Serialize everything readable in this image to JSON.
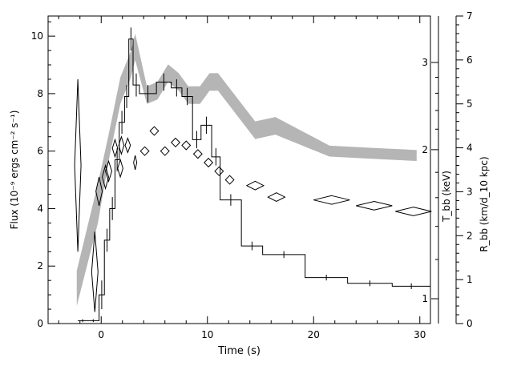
{
  "chart_data": {
    "type": "line",
    "xlabel": "Time (s)",
    "xlim": [
      -5,
      31
    ],
    "x_ticks": [
      "0",
      "10",
      "20",
      "30"
    ],
    "axes": {
      "flux": {
        "label": "Flux (10⁻⁹ ergs cm⁻² s⁻¹)",
        "ylim": [
          0,
          10.7
        ],
        "ticks": [
          "0",
          "2",
          "4",
          "6",
          "8",
          "10"
        ]
      },
      "temperature": {
        "label": "T_bb (keV)",
        "scale": "log",
        "ticks": [
          "1",
          "2",
          "3"
        ]
      },
      "radius": {
        "label": "R_bb (km/d_10 kpc)",
        "ylim": [
          0,
          7
        ],
        "ticks": [
          "0",
          "1",
          "2",
          "3",
          "4",
          "5",
          "6",
          "7"
        ]
      }
    },
    "series": [
      {
        "style": "histogram",
        "axis": "flux",
        "points": [
          {
            "x0": -2.2,
            "x1": -1.3,
            "y": 0.1,
            "err": 0.05
          },
          {
            "x0": -1.3,
            "x1": -0.2,
            "y": 0.1,
            "err": 0.05
          },
          {
            "x0": -0.2,
            "x1": 0.3,
            "y": 1.0,
            "err": 0.5
          },
          {
            "x0": 0.3,
            "x1": 0.8,
            "y": 2.9,
            "err": 0.4
          },
          {
            "x0": 0.8,
            "x1": 1.3,
            "y": 4.0,
            "err": 0.4
          },
          {
            "x0": 1.3,
            "x1": 1.7,
            "y": 5.7,
            "err": 0.4
          },
          {
            "x0": 1.7,
            "x1": 2.2,
            "y": 7.0,
            "err": 0.4
          },
          {
            "x0": 2.2,
            "x1": 2.6,
            "y": 7.9,
            "err": 0.4
          },
          {
            "x0": 2.6,
            "x1": 3.0,
            "y": 9.9,
            "err": 0.4
          },
          {
            "x0": 3.0,
            "x1": 3.6,
            "y": 8.3,
            "err": 0.4
          },
          {
            "x0": 3.6,
            "x1": 5.2,
            "y": 8.0,
            "err": 0.3
          },
          {
            "x0": 5.2,
            "x1": 6.6,
            "y": 8.4,
            "err": 0.3
          },
          {
            "x0": 6.6,
            "x1": 7.6,
            "y": 8.2,
            "err": 0.3
          },
          {
            "x0": 7.6,
            "x1": 8.6,
            "y": 7.9,
            "err": 0.3
          },
          {
            "x0": 8.6,
            "x1": 9.4,
            "y": 6.4,
            "err": 0.3
          },
          {
            "x0": 9.4,
            "x1": 10.4,
            "y": 6.9,
            "err": 0.3
          },
          {
            "x0": 10.4,
            "x1": 11.2,
            "y": 5.8,
            "err": 0.3
          },
          {
            "x0": 11.2,
            "x1": 13.2,
            "y": 4.3,
            "err": 0.2
          },
          {
            "x0": 13.2,
            "x1": 15.2,
            "y": 2.7,
            "err": 0.15
          },
          {
            "x0": 15.2,
            "x1": 19.2,
            "y": 2.4,
            "err": 0.12
          },
          {
            "x0": 19.2,
            "x1": 23.2,
            "y": 1.6,
            "err": 0.1
          },
          {
            "x0": 23.2,
            "x1": 27.4,
            "y": 1.4,
            "err": 0.1
          },
          {
            "x0": 27.4,
            "x1": 31.0,
            "y": 1.3,
            "err": 0.1
          }
        ]
      },
      {
        "style": "band",
        "axis": "radius",
        "color": "#b5b5b5",
        "points": [
          {
            "x": -2.3,
            "lo": 0.4,
            "hi": 1.2
          },
          {
            "x": -0.3,
            "lo": 2.3,
            "hi": 3.2
          },
          {
            "x": 0.7,
            "lo": 3.7,
            "hi": 4.3
          },
          {
            "x": 1.8,
            "lo": 5.0,
            "hi": 5.6
          },
          {
            "x": 2.8,
            "lo": 5.6,
            "hi": 6.2
          },
          {
            "x": 3.2,
            "lo": 6.0,
            "hi": 6.6
          },
          {
            "x": 4.3,
            "lo": 5.0,
            "hi": 5.4
          },
          {
            "x": 5.3,
            "lo": 5.1,
            "hi": 5.5
          },
          {
            "x": 6.3,
            "lo": 5.5,
            "hi": 5.9
          },
          {
            "x": 7.3,
            "lo": 5.3,
            "hi": 5.7
          },
          {
            "x": 8.2,
            "lo": 5.0,
            "hi": 5.4
          },
          {
            "x": 9.3,
            "lo": 5.0,
            "hi": 5.4
          },
          {
            "x": 10.2,
            "lo": 5.3,
            "hi": 5.7
          },
          {
            "x": 11.0,
            "lo": 5.3,
            "hi": 5.7
          },
          {
            "x": 14.5,
            "lo": 4.2,
            "hi": 4.6
          },
          {
            "x": 16.4,
            "lo": 4.3,
            "hi": 4.7
          },
          {
            "x": 21.5,
            "lo": 3.8,
            "hi": 4.05
          },
          {
            "x": 25.5,
            "lo": 3.75,
            "hi": 4.0
          },
          {
            "x": 29.7,
            "lo": 3.7,
            "hi": 3.95
          }
        ]
      },
      {
        "style": "diamonds",
        "axis": "temperature_on_flux_scale",
        "points": [
          {
            "x": -2.2,
            "y": 5.5,
            "dx": 0.3,
            "dy": 3.0
          },
          {
            "x": -0.6,
            "y": 1.8,
            "dx": 0.3,
            "dy": 1.4
          },
          {
            "x": -0.2,
            "y": 4.6,
            "dx": 0.3,
            "dy": 0.5
          },
          {
            "x": 0.4,
            "y": 5.1,
            "dx": 0.3,
            "dy": 0.4
          },
          {
            "x": 0.7,
            "y": 5.3,
            "dx": 0.3,
            "dy": 0.35
          },
          {
            "x": 1.3,
            "y": 6.1,
            "dx": 0.25,
            "dy": 0.3
          },
          {
            "x": 1.8,
            "y": 5.4,
            "dx": 0.25,
            "dy": 0.3
          },
          {
            "x": 1.9,
            "y": 6.2,
            "dx": 0.25,
            "dy": 0.3
          },
          {
            "x": 2.5,
            "y": 6.2,
            "dx": 0.25,
            "dy": 0.25
          },
          {
            "x": 3.2,
            "y": 5.6,
            "dx": 0.15,
            "dy": 0.25
          },
          {
            "x": 4.1,
            "y": 6.0,
            "dx": 0.4,
            "dy": 0.15
          },
          {
            "x": 5.0,
            "y": 6.7,
            "dx": 0.4,
            "dy": 0.15
          },
          {
            "x": 6.0,
            "y": 6.0,
            "dx": 0.4,
            "dy": 0.15
          },
          {
            "x": 7.0,
            "y": 6.3,
            "dx": 0.4,
            "dy": 0.15
          },
          {
            "x": 8.0,
            "y": 6.2,
            "dx": 0.4,
            "dy": 0.15
          },
          {
            "x": 9.1,
            "y": 5.9,
            "dx": 0.4,
            "dy": 0.15
          },
          {
            "x": 10.1,
            "y": 5.6,
            "dx": 0.4,
            "dy": 0.15
          },
          {
            "x": 11.1,
            "y": 5.3,
            "dx": 0.4,
            "dy": 0.15
          },
          {
            "x": 12.1,
            "y": 5.0,
            "dx": 0.4,
            "dy": 0.15
          },
          {
            "x": 14.5,
            "y": 4.8,
            "dx": 0.8,
            "dy": 0.15
          },
          {
            "x": 16.5,
            "y": 4.4,
            "dx": 0.8,
            "dy": 0.15
          },
          {
            "x": 21.7,
            "y": 4.3,
            "dx": 1.7,
            "dy": 0.15
          },
          {
            "x": 25.7,
            "y": 4.1,
            "dx": 1.7,
            "dy": 0.15
          },
          {
            "x": 29.4,
            "y": 3.9,
            "dx": 1.7,
            "dy": 0.15
          }
        ]
      }
    ]
  }
}
